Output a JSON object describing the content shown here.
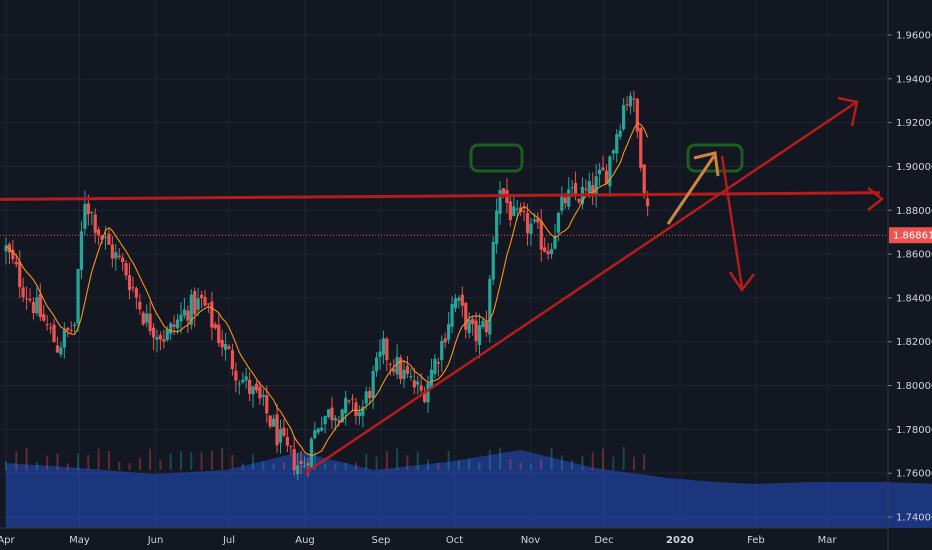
{
  "chart_data": {
    "type": "candlestick",
    "colors": {
      "background": "#131722",
      "grid": "#1f2433",
      "up": "#26a69a",
      "down": "#ef5350",
      "ma": "#f7931a",
      "volume": "#2962ff",
      "trendline": "#b71c1c",
      "box": "#1b5e20",
      "arrow_up": "#cd853f",
      "price_line": "#ef5350",
      "axis_text": "#d1d4dc"
    },
    "y_axis": {
      "min": 1.735,
      "max": 1.97,
      "ticks": [
        "1.96000",
        "1.94000",
        "1.92000",
        "1.90000",
        "1.88000",
        "1.86000",
        "1.84000",
        "1.82000",
        "1.80000",
        "1.78000",
        "1.76000",
        "1.74000"
      ]
    },
    "x_axis": {
      "labels": [
        "Apr",
        "May",
        "Jun",
        "Jul",
        "Aug",
        "Sep",
        "Oct",
        "Nov",
        "Dec",
        "2020",
        "Feb",
        "Mar"
      ],
      "bold_labels": [
        "2020"
      ]
    },
    "current_price": "1.86861",
    "current_price_value": 1.86861,
    "candles": [],
    "anchors": [
      [
        "2019-04-01",
        1.862
      ],
      [
        "2019-04-08",
        1.845
      ],
      [
        "2019-04-15",
        1.832
      ],
      [
        "2019-04-22",
        1.818
      ],
      [
        "2019-04-29",
        1.828
      ],
      [
        "2019-05-03",
        1.886
      ],
      [
        "2019-05-10",
        1.868
      ],
      [
        "2019-05-20",
        1.852
      ],
      [
        "2019-05-28",
        1.83
      ],
      [
        "2019-06-05",
        1.822
      ],
      [
        "2019-06-14",
        1.835
      ],
      [
        "2019-06-20",
        1.838
      ],
      [
        "2019-06-28",
        1.82
      ],
      [
        "2019-07-05",
        1.805
      ],
      [
        "2019-07-15",
        1.79
      ],
      [
        "2019-07-24",
        1.77
      ],
      [
        "2019-07-31",
        1.762
      ],
      [
        "2019-08-07",
        1.785
      ],
      [
        "2019-08-16",
        1.79
      ],
      [
        "2019-08-24",
        1.788
      ],
      [
        "2019-09-02",
        1.816
      ],
      [
        "2019-09-10",
        1.805
      ],
      [
        "2019-09-18",
        1.796
      ],
      [
        "2019-09-26",
        1.82
      ],
      [
        "2019-10-01",
        1.84
      ],
      [
        "2019-10-09",
        1.822
      ],
      [
        "2019-10-14",
        1.828
      ],
      [
        "2019-10-19",
        1.893
      ],
      [
        "2019-10-25",
        1.876
      ],
      [
        "2019-11-02",
        1.872
      ],
      [
        "2019-11-08",
        1.862
      ],
      [
        "2019-11-15",
        1.885
      ],
      [
        "2019-11-25",
        1.888
      ],
      [
        "2019-12-02",
        1.898
      ],
      [
        "2019-12-09",
        1.928
      ],
      [
        "2019-12-12",
        1.935
      ],
      [
        "2019-12-16",
        1.905
      ],
      [
        "2019-12-20",
        1.869
      ]
    ],
    "drawings": {
      "resistance": [
        [
          "2019-03-25",
          1.885
        ],
        [
          "2020-03-28",
          1.888
        ]
      ],
      "support": [
        [
          "2019-08-01",
          1.76
        ],
        [
          "2020-03-26",
          1.93
        ]
      ]
    }
  }
}
